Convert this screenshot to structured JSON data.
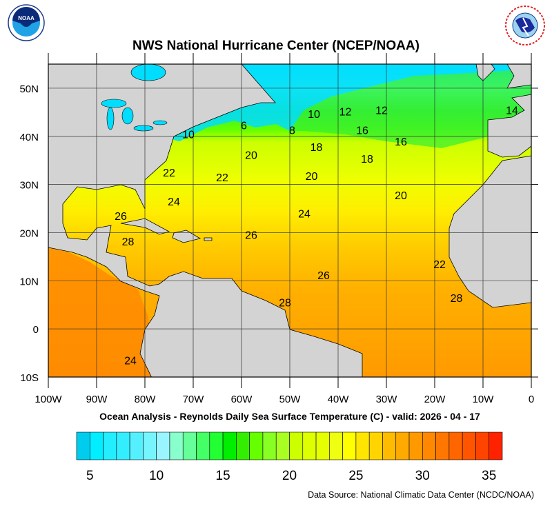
{
  "header": {
    "title": "NWS National Hurricane Center (NCEP/NOAA)",
    "left_logo": "NOAA",
    "right_logo": "NATIONAL WEATHER SERVICE"
  },
  "map": {
    "subtitle": "Ocean Analysis - Reynolds Daily Sea Surface Temperature (C) - valid: 2026 - 04 - 17",
    "lon_range": [
      -100,
      0
    ],
    "lat_range": [
      -10,
      55
    ],
    "land_color": "#d3d3d3",
    "lon_labels": [
      "100W",
      "90W",
      "80W",
      "70W",
      "60W",
      "50W",
      "40W",
      "30W",
      "20W",
      "10W",
      "0"
    ],
    "lat_labels": [
      "50N",
      "40N",
      "30N",
      "20N",
      "10N",
      "0",
      "10S"
    ],
    "contour_labels": [
      {
        "text": "10",
        "lon": -71,
        "lat": 40.5
      },
      {
        "text": "6",
        "lon": -59.5,
        "lat": 42.3
      },
      {
        "text": "8",
        "lon": -49.5,
        "lat": 41.3
      },
      {
        "text": "10",
        "lon": -45,
        "lat": 44.7
      },
      {
        "text": "12",
        "lon": -38.5,
        "lat": 45.2
      },
      {
        "text": "12",
        "lon": -31,
        "lat": 45.5
      },
      {
        "text": "14",
        "lon": -4,
        "lat": 45.5
      },
      {
        "text": "16",
        "lon": -35,
        "lat": 41.3
      },
      {
        "text": "16",
        "lon": -27,
        "lat": 39
      },
      {
        "text": "18",
        "lon": -44.5,
        "lat": 37.8
      },
      {
        "text": "18",
        "lon": -34,
        "lat": 35.4
      },
      {
        "text": "20",
        "lon": -58,
        "lat": 36.2
      },
      {
        "text": "20",
        "lon": -45.5,
        "lat": 31.8
      },
      {
        "text": "20",
        "lon": -27,
        "lat": 27.8
      },
      {
        "text": "22",
        "lon": -75,
        "lat": 32.5
      },
      {
        "text": "22",
        "lon": -64,
        "lat": 31.5
      },
      {
        "text": "24",
        "lon": -74,
        "lat": 26.5
      },
      {
        "text": "24",
        "lon": -47,
        "lat": 24
      },
      {
        "text": "26",
        "lon": -85,
        "lat": 23.5
      },
      {
        "text": "26",
        "lon": -58,
        "lat": 19.6
      },
      {
        "text": "26",
        "lon": -43,
        "lat": 11.2
      },
      {
        "text": "28",
        "lon": -83.5,
        "lat": 18.2
      },
      {
        "text": "28",
        "lon": -51,
        "lat": 5.5
      },
      {
        "text": "22",
        "lon": -19,
        "lat": 13.5
      },
      {
        "text": "28",
        "lon": -15.5,
        "lat": 6.5
      },
      {
        "text": "24",
        "lon": -83,
        "lat": -6.5
      }
    ]
  },
  "colorbar": {
    "min": 4,
    "max": 36,
    "tick_labels": [
      "5",
      "10",
      "15",
      "20",
      "25",
      "30",
      "35"
    ],
    "colors": [
      "#00ccee",
      "#00eeff",
      "#22eeff",
      "#33eeff",
      "#55f0ff",
      "#77f5ff",
      "#99f5ff",
      "#88ffcc",
      "#66ff99",
      "#44ff66",
      "#22ff33",
      "#00ee00",
      "#33ee00",
      "#66ff00",
      "#88ff22",
      "#aaff22",
      "#ccff00",
      "#ddff00",
      "#e5ff00",
      "#eeff11",
      "#ffff00",
      "#ffe600",
      "#ffd400",
      "#ffbb00",
      "#ffaa00",
      "#ff9900",
      "#ff8800",
      "#ff7700",
      "#ff6600",
      "#ff5500",
      "#ff4400",
      "#ff2200"
    ]
  },
  "footer": {
    "source": "Data Source: National Climatic Data Center (NCDC/NOAA)"
  }
}
